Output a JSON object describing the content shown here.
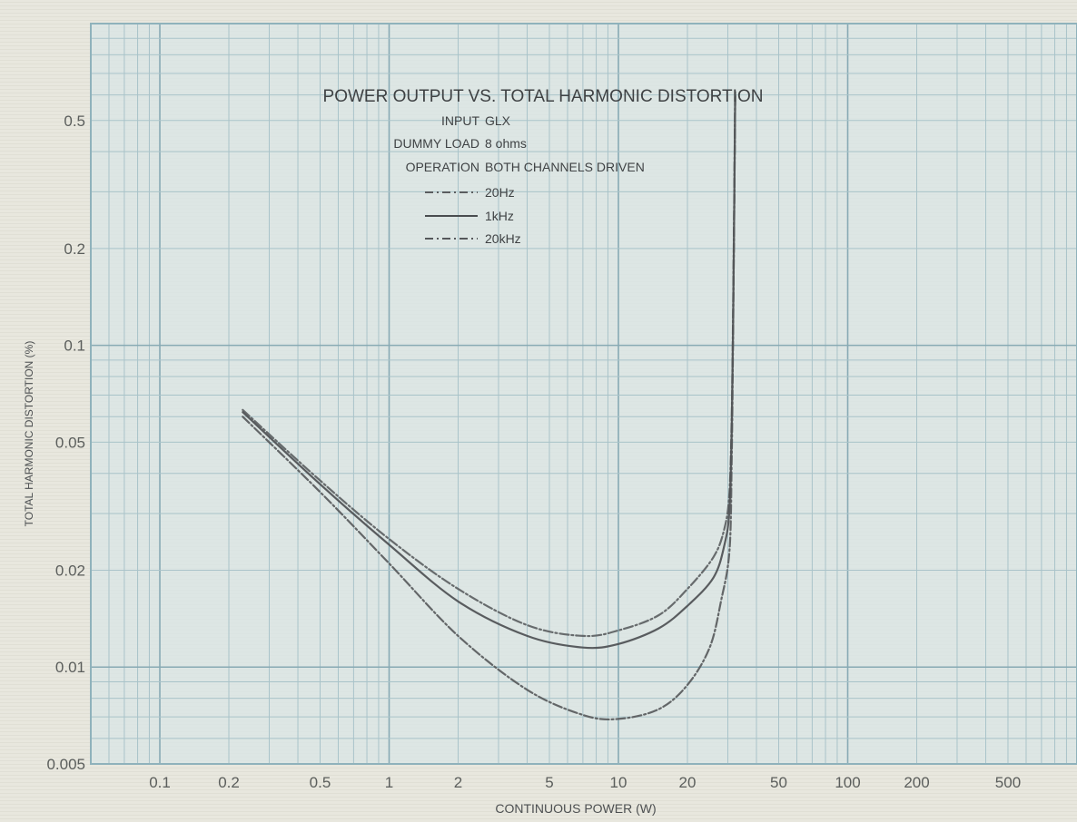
{
  "chart_data": {
    "type": "line",
    "title": "POWER OUTPUT VS. TOTAL HARMONIC DISTORTION",
    "info_lines": [
      {
        "key": "INPUT",
        "value": "GLX"
      },
      {
        "key": "DUMMY LOAD",
        "value": "8 ohms"
      },
      {
        "key": "OPERATION",
        "value": "BOTH CHANNELS DRIVEN"
      }
    ],
    "xlabel": "CONTINUOUS POWER (W)",
    "ylabel": "TOTAL HARMONIC DISTORTION (%)",
    "x_scale": "log",
    "y_scale": "log",
    "xlim": [
      0.05,
      1000
    ],
    "ylim": [
      0.005,
      1
    ],
    "x_ticks": [
      {
        "value": 0.1,
        "label": "0.1"
      },
      {
        "value": 0.2,
        "label": "0.2"
      },
      {
        "value": 0.5,
        "label": "0.5"
      },
      {
        "value": 1,
        "label": "1"
      },
      {
        "value": 2,
        "label": "2"
      },
      {
        "value": 5,
        "label": "5"
      },
      {
        "value": 10,
        "label": "10"
      },
      {
        "value": 20,
        "label": "20"
      },
      {
        "value": 50,
        "label": "50"
      },
      {
        "value": 100,
        "label": "100"
      },
      {
        "value": 200,
        "label": "200"
      },
      {
        "value": 500,
        "label": "500"
      }
    ],
    "y_ticks": [
      {
        "value": 0.005,
        "label": "0.005"
      },
      {
        "value": 0.01,
        "label": "0.01"
      },
      {
        "value": 0.02,
        "label": "0.02"
      },
      {
        "value": 0.05,
        "label": "0.05"
      },
      {
        "value": 0.1,
        "label": "0.1"
      },
      {
        "value": 0.2,
        "label": "0.2"
      },
      {
        "value": 0.5,
        "label": "0.5"
      }
    ],
    "grid": true,
    "legend_position": "top-center",
    "series": [
      {
        "name": "20Hz",
        "style": "dash-dot",
        "color": "#5a5d5f",
        "points": [
          [
            0.23,
            0.063
          ],
          [
            0.5,
            0.038
          ],
          [
            1,
            0.025
          ],
          [
            2,
            0.0175
          ],
          [
            4,
            0.0135
          ],
          [
            7,
            0.0125
          ],
          [
            10,
            0.013
          ],
          [
            15,
            0.0145
          ],
          [
            20,
            0.0175
          ],
          [
            26,
            0.022
          ],
          [
            29,
            0.027
          ],
          [
            30.5,
            0.035
          ],
          [
            31.2,
            0.06
          ],
          [
            31.6,
            0.12
          ],
          [
            32,
            0.3
          ],
          [
            32.3,
            0.62
          ]
        ]
      },
      {
        "name": "1kHz",
        "style": "solid",
        "color": "#4a4d50",
        "points": [
          [
            0.23,
            0.062
          ],
          [
            0.5,
            0.037
          ],
          [
            1,
            0.024
          ],
          [
            2,
            0.016
          ],
          [
            4,
            0.0125
          ],
          [
            7,
            0.0115
          ],
          [
            10,
            0.0118
          ],
          [
            15,
            0.0132
          ],
          [
            20,
            0.0155
          ],
          [
            26,
            0.019
          ],
          [
            29,
            0.024
          ],
          [
            30.5,
            0.031
          ],
          [
            31.2,
            0.055
          ],
          [
            31.6,
            0.11
          ],
          [
            32,
            0.28
          ],
          [
            32.3,
            0.6
          ]
        ]
      },
      {
        "name": "20kHz",
        "style": "dash-dot",
        "color": "#55585a",
        "points": [
          [
            0.23,
            0.06
          ],
          [
            0.5,
            0.035
          ],
          [
            1,
            0.021
          ],
          [
            2,
            0.0125
          ],
          [
            4,
            0.0085
          ],
          [
            7,
            0.0071
          ],
          [
            10,
            0.0069
          ],
          [
            15,
            0.0074
          ],
          [
            20,
            0.0088
          ],
          [
            25,
            0.0115
          ],
          [
            28,
            0.016
          ],
          [
            30.5,
            0.023
          ],
          [
            31.2,
            0.045
          ],
          [
            31.6,
            0.1
          ],
          [
            32,
            0.27
          ],
          [
            32.3,
            0.58
          ]
        ]
      }
    ]
  }
}
